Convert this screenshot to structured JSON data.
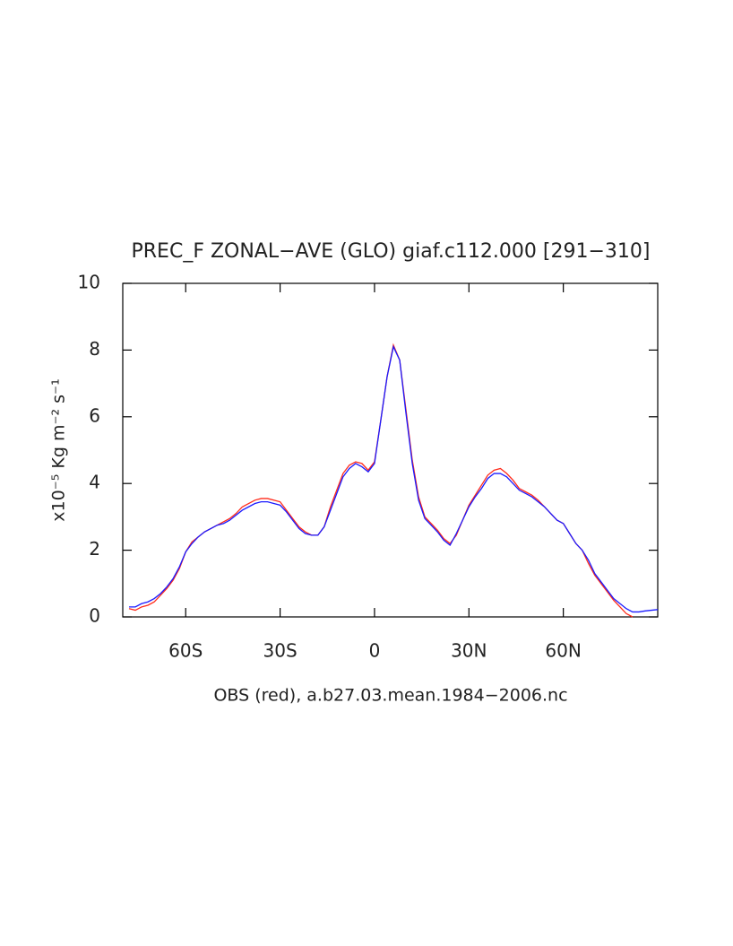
{
  "chart_data": {
    "type": "line",
    "title": "PREC_F ZONAL−AVE (GLO) giaf.c112.000 [291−310]",
    "x_label": "OBS (red), a.b27.03.mean.1984−2006.nc",
    "y_label": "x10⁻⁵ Kg m⁻² s⁻¹",
    "x": [
      -78,
      -76,
      -74,
      -72,
      -70,
      -68,
      -66,
      -64,
      -62,
      -60,
      -58,
      -56,
      -54,
      -52,
      -50,
      -48,
      -46,
      -44,
      -42,
      -40,
      -38,
      -36,
      -34,
      -32,
      -30,
      -28,
      -26,
      -24,
      -22,
      -20,
      -18,
      -16,
      -14,
      -12,
      -10,
      -8,
      -6,
      -4,
      -2,
      0,
      2,
      4,
      6,
      8,
      10,
      12,
      14,
      16,
      18,
      20,
      22,
      24,
      26,
      28,
      30,
      32,
      34,
      36,
      38,
      40,
      42,
      44,
      46,
      48,
      50,
      52,
      54,
      56,
      58,
      60,
      62,
      64,
      66,
      68,
      70,
      72,
      74,
      76,
      78,
      80,
      82,
      84,
      86,
      88,
      90
    ],
    "series": [
      {
        "color": "#ff2a1a",
        "values": [
          0.25,
          0.2,
          0.3,
          0.35,
          0.45,
          0.65,
          0.85,
          1.1,
          1.45,
          1.95,
          2.25,
          2.4,
          2.55,
          2.65,
          2.75,
          2.85,
          2.95,
          3.1,
          3.3,
          3.4,
          3.5,
          3.55,
          3.55,
          3.5,
          3.45,
          3.2,
          2.95,
          2.7,
          2.55,
          2.45,
          2.45,
          2.7,
          3.3,
          3.8,
          4.3,
          4.55,
          4.65,
          4.6,
          4.4,
          4.65,
          5.9,
          7.2,
          8.15,
          7.7,
          6.2,
          4.7,
          3.6,
          3.0,
          2.8,
          2.6,
          2.35,
          2.2,
          2.45,
          2.9,
          3.35,
          3.65,
          3.95,
          4.25,
          4.4,
          4.45,
          4.3,
          4.1,
          3.85,
          3.75,
          3.65,
          3.5,
          3.3,
          3.1,
          2.9,
          2.8,
          2.5,
          2.2,
          2.0,
          1.6,
          1.25,
          1.0,
          0.75,
          0.5,
          0.3,
          0.1,
          0.0,
          null,
          null,
          null,
          null
        ]
      },
      {
        "color": "#1a1aff",
        "values": [
          0.3,
          0.3,
          0.4,
          0.45,
          0.55,
          0.7,
          0.9,
          1.15,
          1.5,
          1.95,
          2.2,
          2.4,
          2.55,
          2.65,
          2.75,
          2.8,
          2.9,
          3.05,
          3.2,
          3.3,
          3.4,
          3.45,
          3.45,
          3.4,
          3.35,
          3.15,
          2.9,
          2.65,
          2.5,
          2.45,
          2.45,
          2.7,
          3.2,
          3.7,
          4.2,
          4.45,
          4.6,
          4.5,
          4.35,
          4.6,
          5.9,
          7.2,
          8.1,
          7.7,
          6.1,
          4.6,
          3.5,
          2.95,
          2.75,
          2.55,
          2.3,
          2.15,
          2.5,
          2.9,
          3.3,
          3.6,
          3.85,
          4.15,
          4.3,
          4.3,
          4.2,
          4.0,
          3.8,
          3.7,
          3.6,
          3.45,
          3.3,
          3.1,
          2.9,
          2.8,
          2.5,
          2.2,
          2.0,
          1.7,
          1.3,
          1.05,
          0.8,
          0.55,
          0.4,
          0.25,
          0.15,
          0.15,
          0.18,
          0.2,
          0.22
        ]
      }
    ],
    "xlim": [
      -80,
      90
    ],
    "xticks": [
      {
        "value": -60,
        "label": "60S"
      },
      {
        "value": -30,
        "label": "30S"
      },
      0,
      {
        "value": 30,
        "label": "30N"
      },
      {
        "value": 60,
        "label": "60N"
      }
    ],
    "ylim": [
      0,
      10
    ],
    "yticks": [
      0,
      2,
      4,
      6,
      8,
      10
    ],
    "grid": false
  }
}
